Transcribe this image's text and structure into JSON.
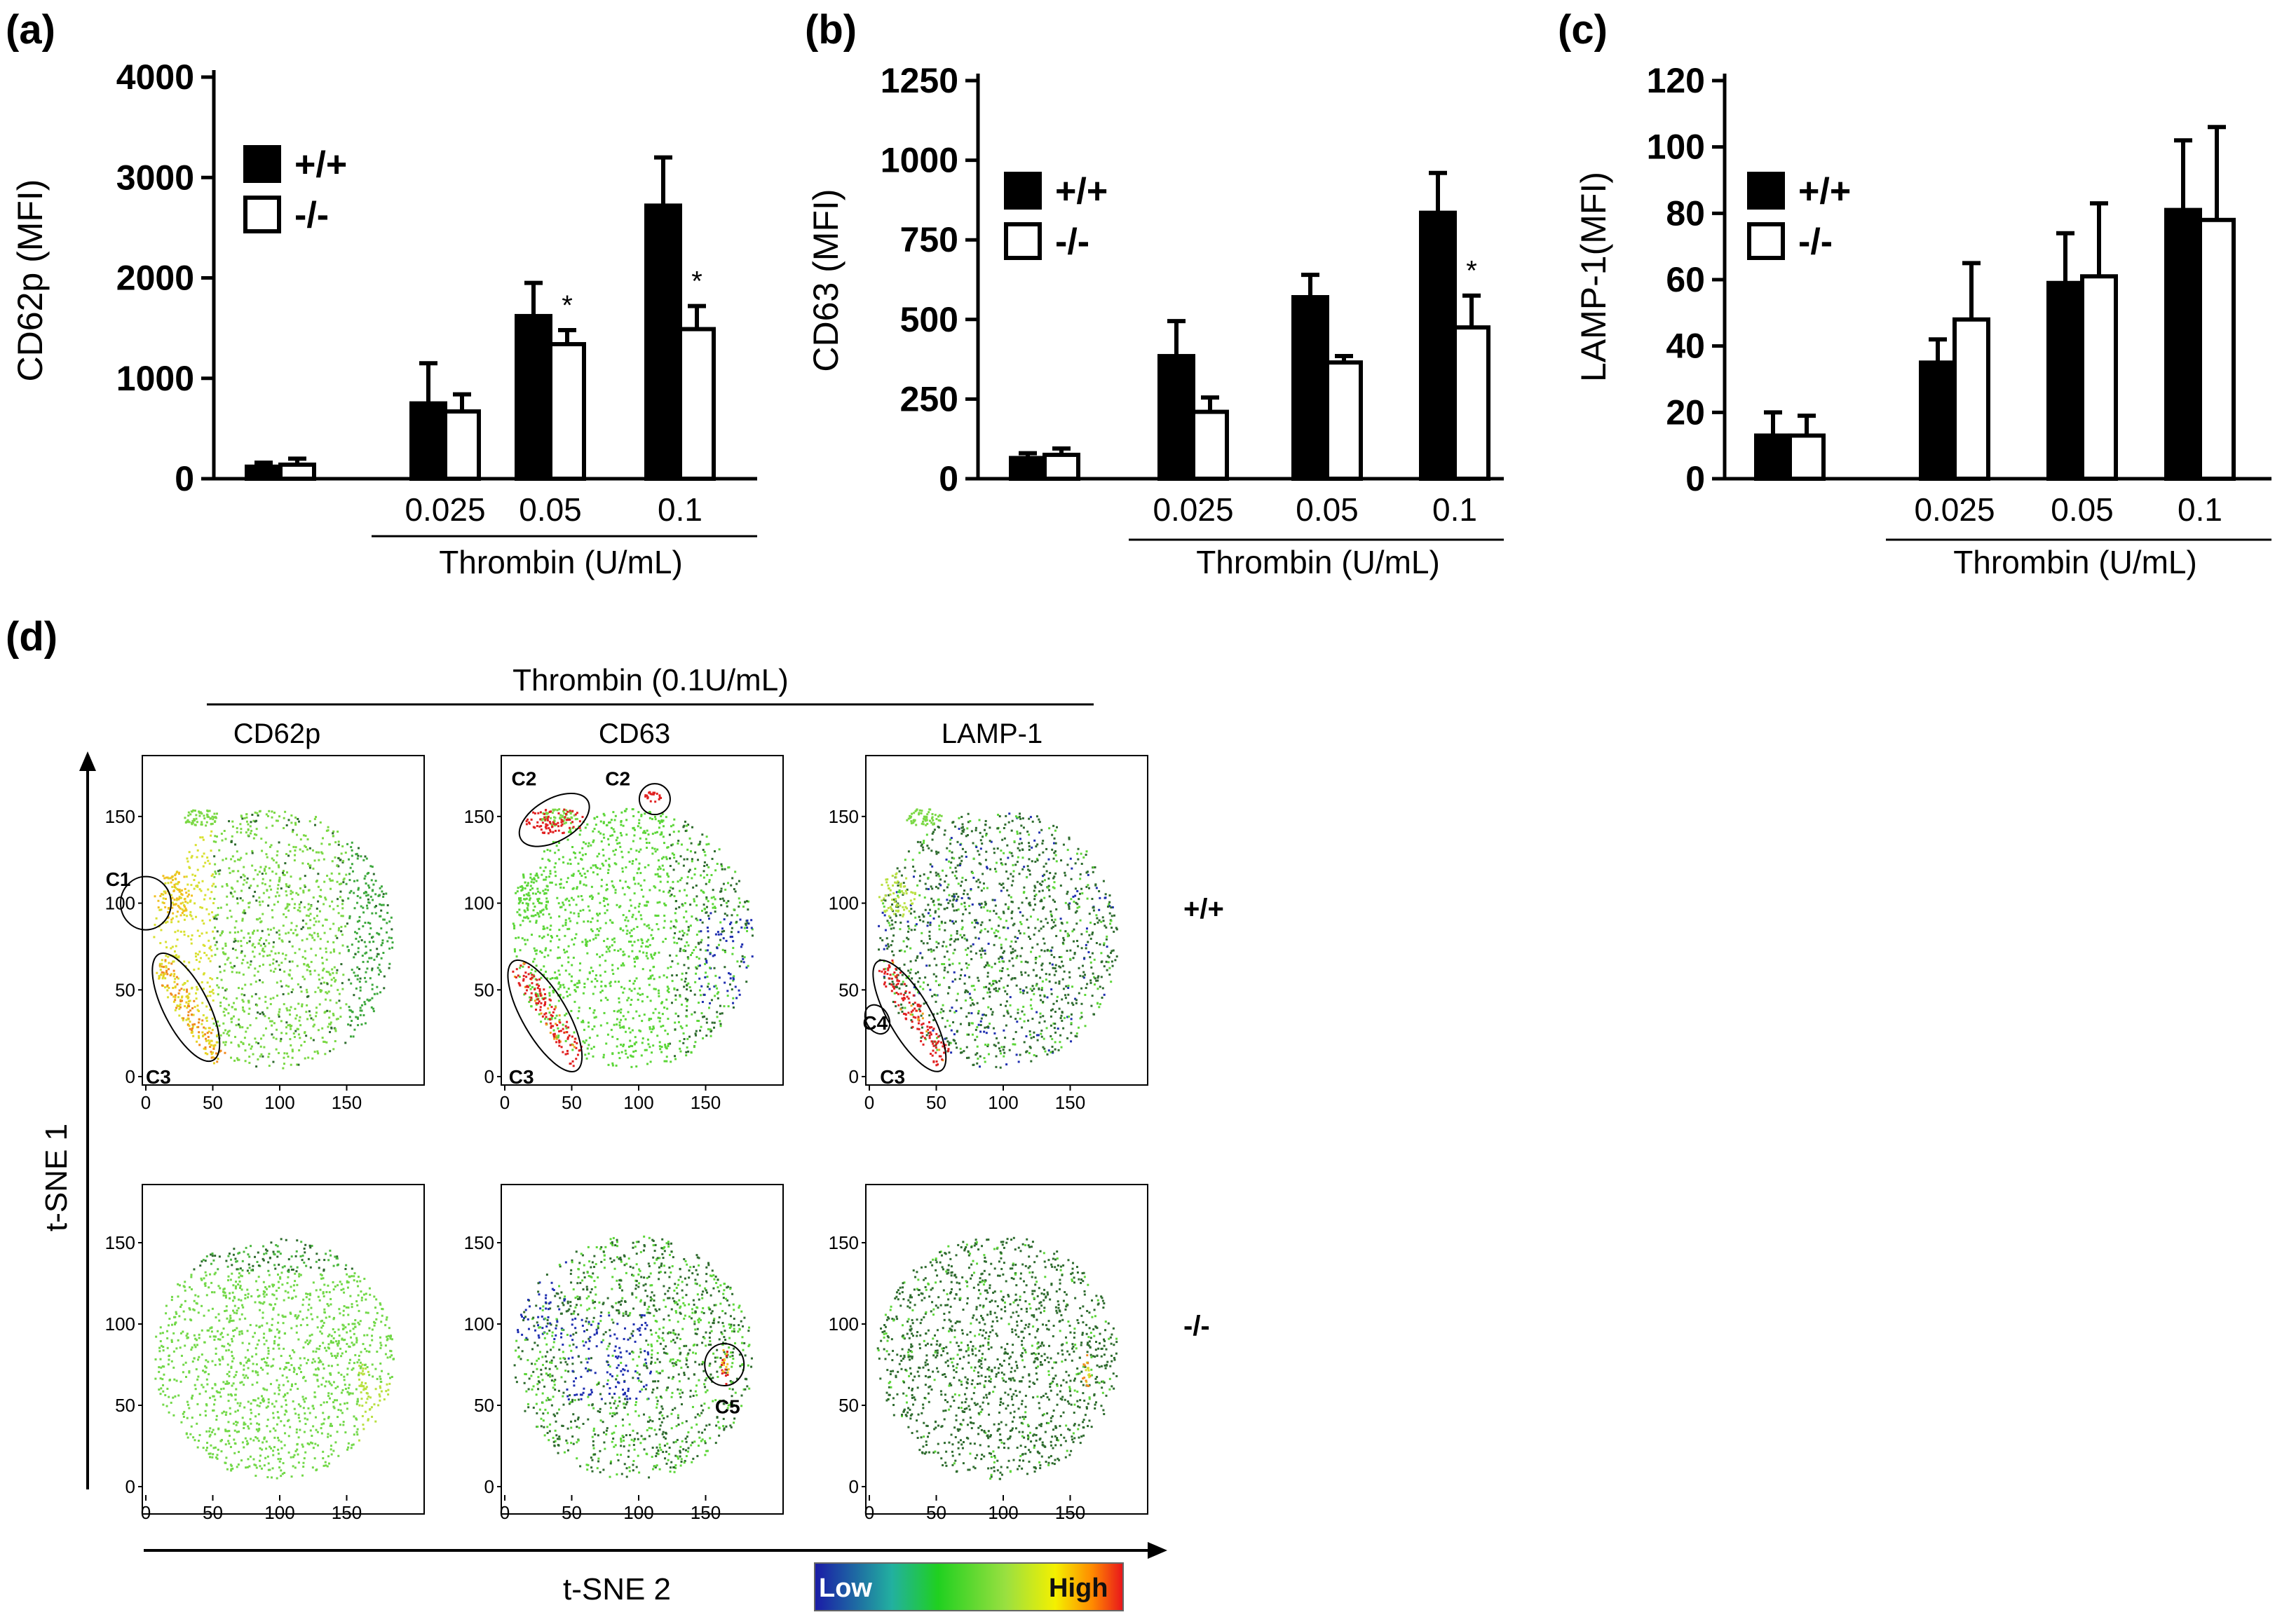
{
  "chart_data": [
    {
      "panel": "(a)",
      "type": "bar",
      "ylabel": "CD62p (MFI)",
      "ylim": [
        0,
        4000
      ],
      "yticks": [
        0,
        1000,
        2000,
        3000,
        4000
      ],
      "xlabel": "Thrombin (U/mL)",
      "categories": [
        "",
        "0.025",
        "0.05",
        "0.1"
      ],
      "series": [
        {
          "name": "+/+",
          "values": [
            120,
            750,
            1620,
            2720
          ],
          "errors": [
            40,
            400,
            330,
            480
          ]
        },
        {
          "name": "-/-",
          "values": [
            140,
            670,
            1340,
            1490
          ],
          "errors": [
            60,
            170,
            140,
            230
          ]
        }
      ],
      "significance": [
        {
          "category": "0.05",
          "series": "-/-",
          "mark": "*"
        },
        {
          "category": "0.1",
          "series": "-/-",
          "mark": "*"
        }
      ]
    },
    {
      "panel": "(b)",
      "type": "bar",
      "ylabel": "CD63 (MFI)",
      "ylim": [
        0,
        1250
      ],
      "yticks": [
        0,
        250,
        500,
        750,
        1000,
        1250
      ],
      "xlabel": "Thrombin (U/mL)",
      "categories": [
        "",
        "0.025",
        "0.05",
        "0.1"
      ],
      "series": [
        {
          "name": "+/+",
          "values": [
            65,
            385,
            570,
            835
          ],
          "errors": [
            15,
            110,
            70,
            125
          ]
        },
        {
          "name": "-/-",
          "values": [
            75,
            210,
            365,
            475
          ],
          "errors": [
            20,
            45,
            20,
            100
          ]
        }
      ],
      "significance": [
        {
          "category": "0.1",
          "series": "-/-",
          "mark": "*"
        }
      ]
    },
    {
      "panel": "(c)",
      "type": "bar",
      "ylabel": "LAMP-1(MFI)",
      "ylim": [
        0,
        120
      ],
      "yticks": [
        0,
        20,
        40,
        60,
        80,
        100,
        120
      ],
      "xlabel": "Thrombin (U/mL)",
      "categories": [
        "",
        "0.025",
        "0.05",
        "0.1"
      ],
      "series": [
        {
          "name": "+/+",
          "values": [
            13,
            35,
            59,
            81
          ],
          "errors": [
            7,
            7,
            15,
            21
          ]
        },
        {
          "name": "-/-",
          "values": [
            13,
            48,
            61,
            78
          ],
          "errors": [
            6,
            17,
            22,
            28
          ]
        }
      ],
      "significance": []
    },
    {
      "panel": "(d)",
      "type": "scatter",
      "title": "Thrombin (0.1U/mL)",
      "markers": [
        "CD62p",
        "CD63",
        "LAMP-1"
      ],
      "rows": [
        "+/+",
        "-/-"
      ],
      "xlabel": "t-SNE 2",
      "ylabel": "t-SNE 1",
      "xticks": [
        0,
        50,
        100,
        150
      ],
      "yticks": [
        0,
        50,
        100,
        150
      ],
      "color_scale": {
        "low": "Low",
        "high": "High"
      },
      "clusters": {
        "top_cd62p": [
          "C1",
          "C3"
        ],
        "top_cd63": [
          "C2",
          "C2",
          "C3"
        ],
        "top_lamp1": [
          "C4",
          "C3"
        ],
        "bottom_cd63": [
          "C5"
        ]
      }
    }
  ],
  "colors": {
    "bar_filled": "#000000",
    "bar_open": "#ffffff",
    "scale": [
      "#1a1aa6",
      "#20c020",
      "#7ee040",
      "#f0f000",
      "#ff8800",
      "#e8141c"
    ],
    "dot_green": "#5cd638",
    "dot_dark": "#2e6b2e",
    "dot_blue": "#1f2fb0",
    "dot_red": "#e02020"
  }
}
